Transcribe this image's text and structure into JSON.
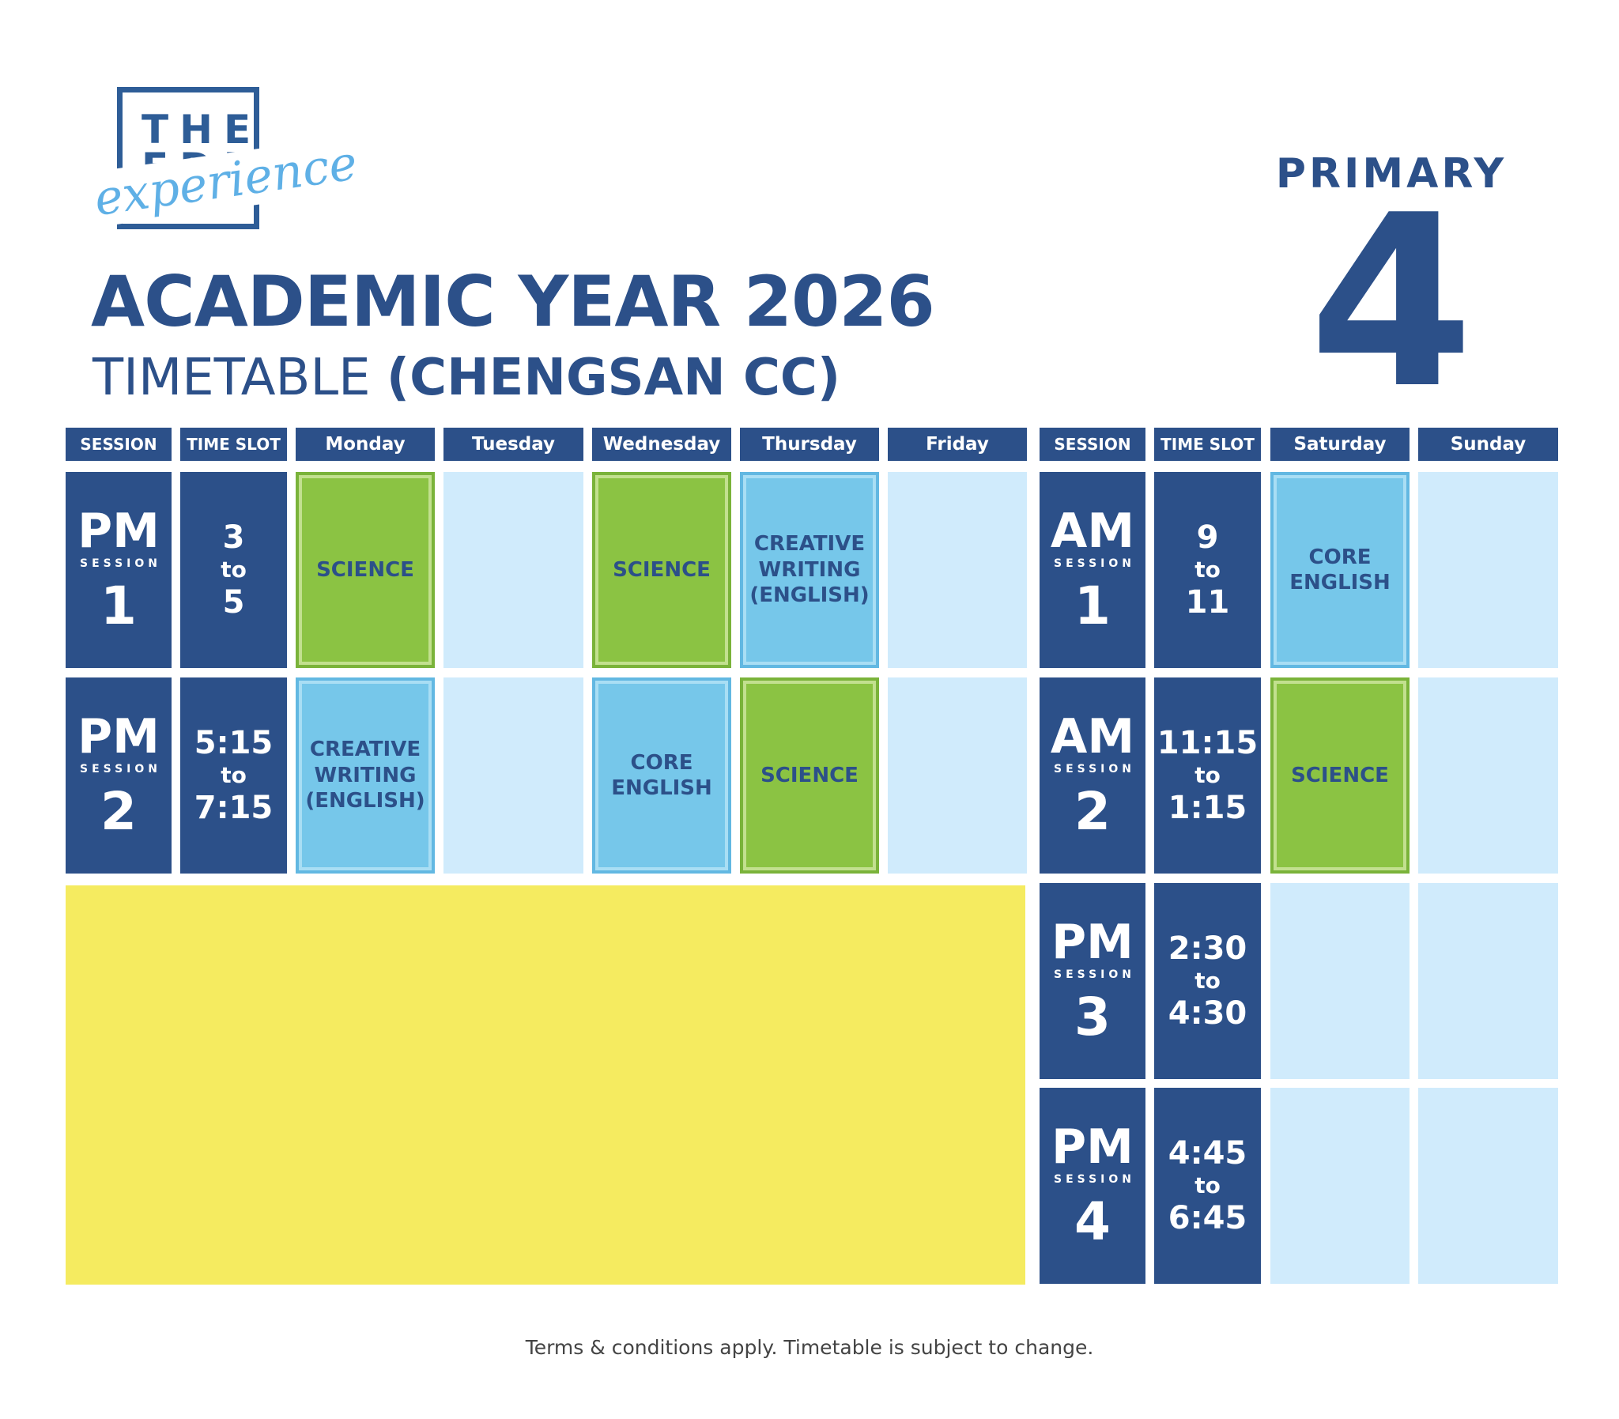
{
  "logo": {
    "line1": "THE",
    "line2": "EDU",
    "script": "experience"
  },
  "title": {
    "main": "ACADEMIC YEAR 2026",
    "sub_plain": "TIMETABLE ",
    "sub_bold": "(CHENGSAN CC)"
  },
  "level": {
    "label": "PRIMARY",
    "number": "4"
  },
  "weekday_headers": {
    "session": "SESSION",
    "time_slot": "TIME SLOT",
    "days": [
      "Monday",
      "Tuesday",
      "Wednesday",
      "Thursday",
      "Friday"
    ]
  },
  "weekend_headers": {
    "session": "SESSION",
    "time_slot": "TIME SLOT",
    "days": [
      "Saturday",
      "Sunday"
    ]
  },
  "session_word": "SESSION",
  "time_to": "to",
  "weekday_rows": [
    {
      "ampm": "PM",
      "num": "1",
      "start": "3",
      "end": "5",
      "cells": [
        {
          "subject": "SCIENCE",
          "color": "green"
        },
        {
          "subject": "",
          "color": "empty"
        },
        {
          "subject": "SCIENCE",
          "color": "green"
        },
        {
          "subject": "CREATIVE WRITING (ENGLISH)",
          "color": "blue"
        },
        {
          "subject": "",
          "color": "empty"
        }
      ]
    },
    {
      "ampm": "PM",
      "num": "2",
      "start": "5:15",
      "end": "7:15",
      "cells": [
        {
          "subject": "CREATIVE WRITING (ENGLISH)",
          "color": "blue"
        },
        {
          "subject": "",
          "color": "empty"
        },
        {
          "subject": "CORE ENGLISH",
          "color": "blue"
        },
        {
          "subject": "SCIENCE",
          "color": "green"
        },
        {
          "subject": "",
          "color": "empty"
        }
      ]
    }
  ],
  "weekend_rows": [
    {
      "ampm": "AM",
      "num": "1",
      "start": "9",
      "end": "11",
      "cells": [
        {
          "subject": "CORE ENGLISH",
          "color": "blue"
        },
        {
          "subject": "",
          "color": "empty"
        }
      ]
    },
    {
      "ampm": "AM",
      "num": "2",
      "start": "11:15",
      "end": "1:15",
      "cells": [
        {
          "subject": "SCIENCE",
          "color": "green"
        },
        {
          "subject": "",
          "color": "empty"
        }
      ]
    },
    {
      "ampm": "PM",
      "num": "3",
      "start": "2:30",
      "end": "4:30",
      "cells": [
        {
          "subject": "",
          "color": "empty"
        },
        {
          "subject": "",
          "color": "empty"
        }
      ]
    },
    {
      "ampm": "PM",
      "num": "4",
      "start": "4:45",
      "end": "6:45",
      "cells": [
        {
          "subject": "",
          "color": "empty"
        },
        {
          "subject": "",
          "color": "empty"
        }
      ]
    }
  ],
  "footer": "Terms & conditions apply. Timetable is subject to change."
}
